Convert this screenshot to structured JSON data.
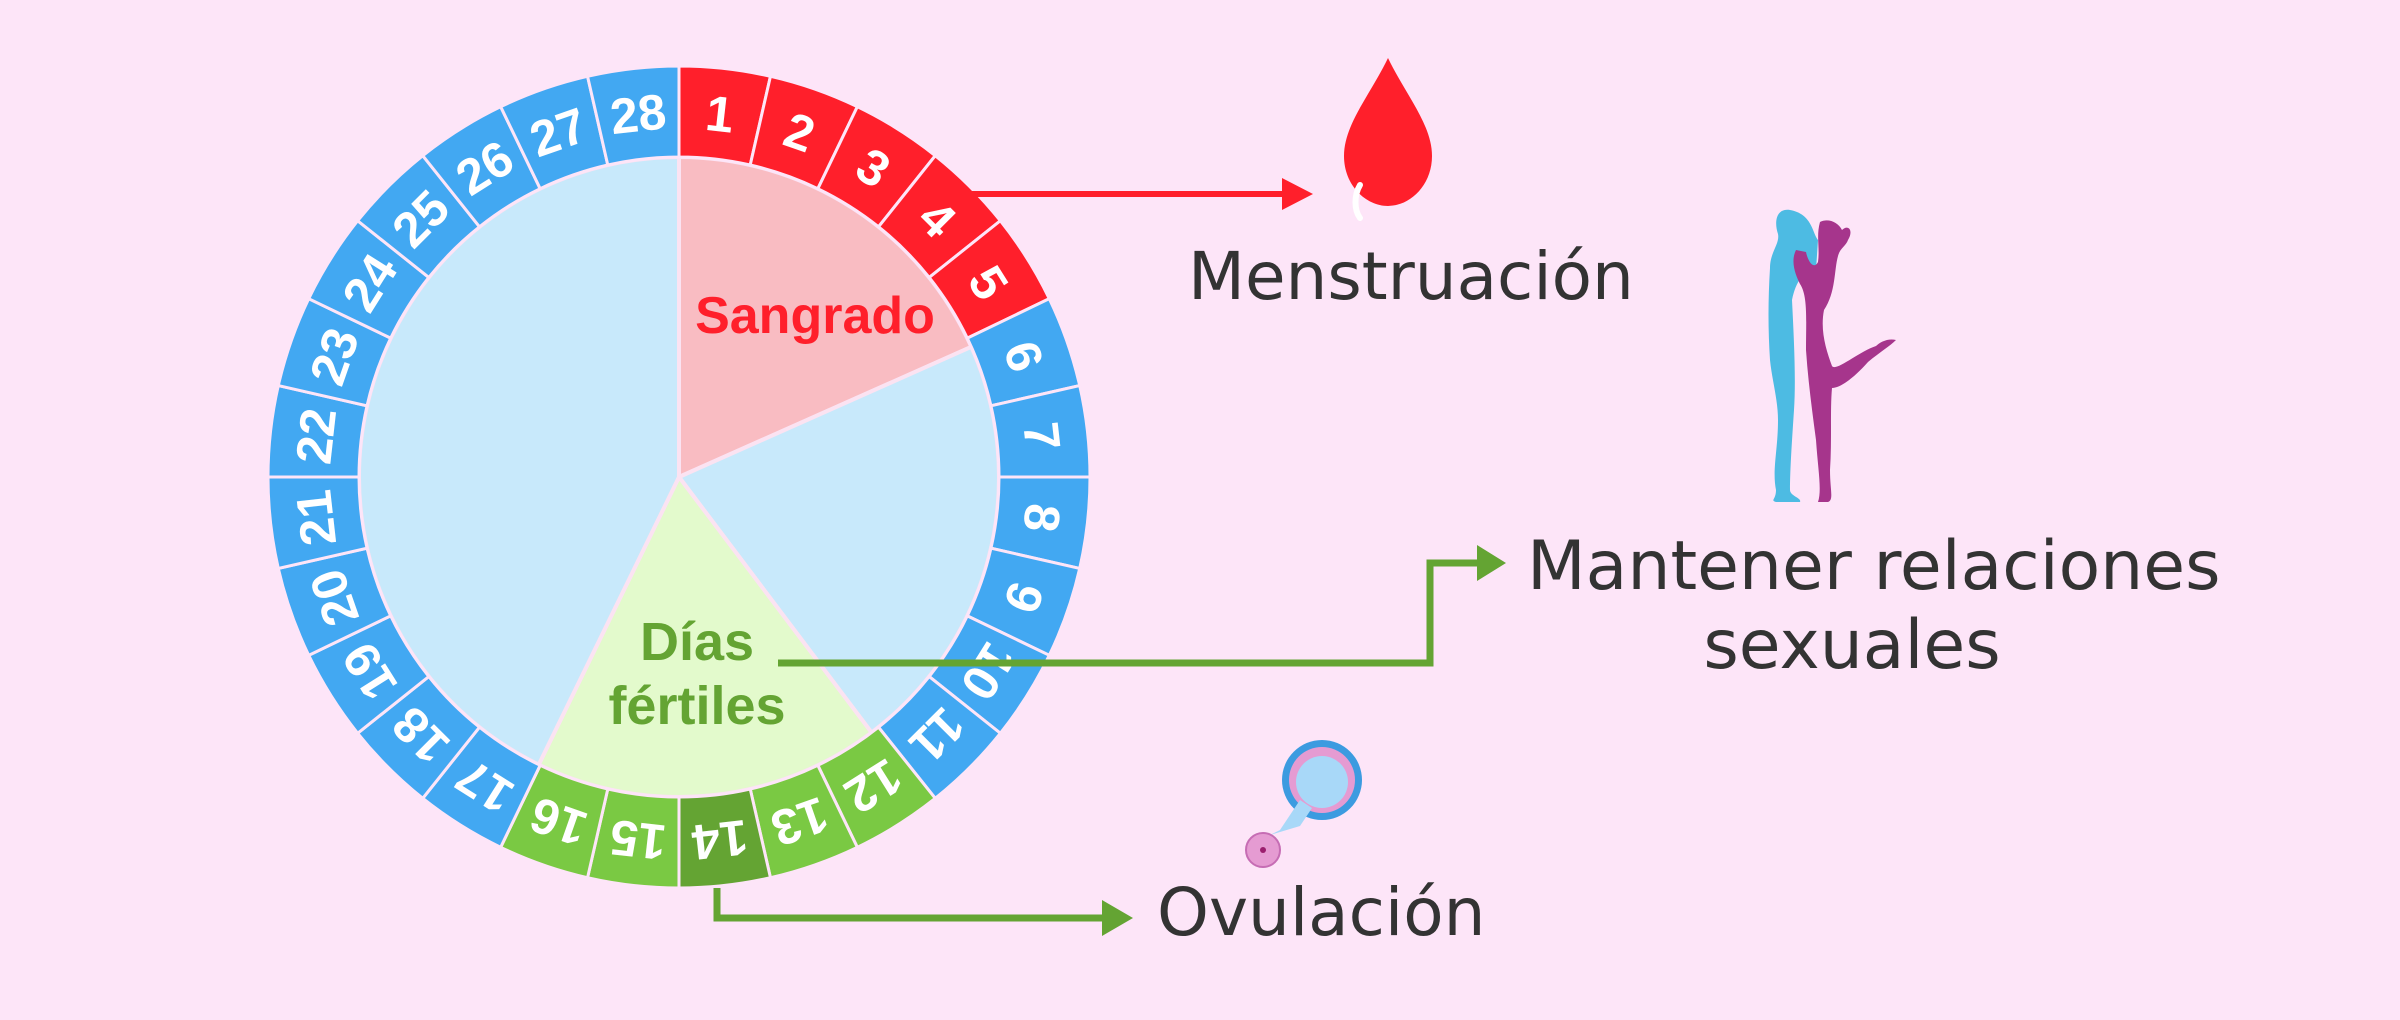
{
  "wheel": {
    "days": [
      {
        "day": "1",
        "phase": "menstruation"
      },
      {
        "day": "2",
        "phase": "menstruation"
      },
      {
        "day": "3",
        "phase": "menstruation"
      },
      {
        "day": "4",
        "phase": "menstruation"
      },
      {
        "day": "5",
        "phase": "menstruation"
      },
      {
        "day": "6",
        "phase": "normal"
      },
      {
        "day": "7",
        "phase": "normal"
      },
      {
        "day": "8",
        "phase": "normal"
      },
      {
        "day": "9",
        "phase": "normal"
      },
      {
        "day": "10",
        "phase": "normal"
      },
      {
        "day": "11",
        "phase": "normal"
      },
      {
        "day": "12",
        "phase": "fertile"
      },
      {
        "day": "13",
        "phase": "fertile"
      },
      {
        "day": "14",
        "phase": "ovulation"
      },
      {
        "day": "15",
        "phase": "fertile"
      },
      {
        "day": "16",
        "phase": "fertile"
      },
      {
        "day": "17",
        "phase": "normal"
      },
      {
        "day": "18",
        "phase": "normal"
      },
      {
        "day": "19",
        "phase": "normal"
      },
      {
        "day": "20",
        "phase": "normal"
      },
      {
        "day": "21",
        "phase": "normal"
      },
      {
        "day": "22",
        "phase": "normal"
      },
      {
        "day": "23",
        "phase": "normal"
      },
      {
        "day": "24",
        "phase": "normal"
      },
      {
        "day": "25",
        "phase": "normal"
      },
      {
        "day": "26",
        "phase": "normal"
      },
      {
        "day": "27",
        "phase": "normal"
      },
      {
        "day": "28",
        "phase": "normal"
      }
    ],
    "sector_bleeding_label": "Sangrado",
    "sector_fertile_label_1": "Días",
    "sector_fertile_label_2": "fértiles"
  },
  "labels": {
    "menstruation": "Menstruación",
    "intercourse_1": "Mantener relaciones",
    "intercourse_2": "sexuales",
    "ovulation": "Ovulación"
  },
  "colors": {
    "background": "#FDE5F8",
    "menstruation": "#FF1F2B",
    "normal": "#42A8F2",
    "fertile": "#7AC943",
    "ovulation": "#64A433",
    "bleeding_sector": "#F9BCC2",
    "fertile_sector": "#E3FACC",
    "other_sector": "#C8E9FB",
    "text": "#333333"
  },
  "icons": [
    "blood-drop-icon",
    "couple-kissing-icon",
    "ovum-icon"
  ]
}
